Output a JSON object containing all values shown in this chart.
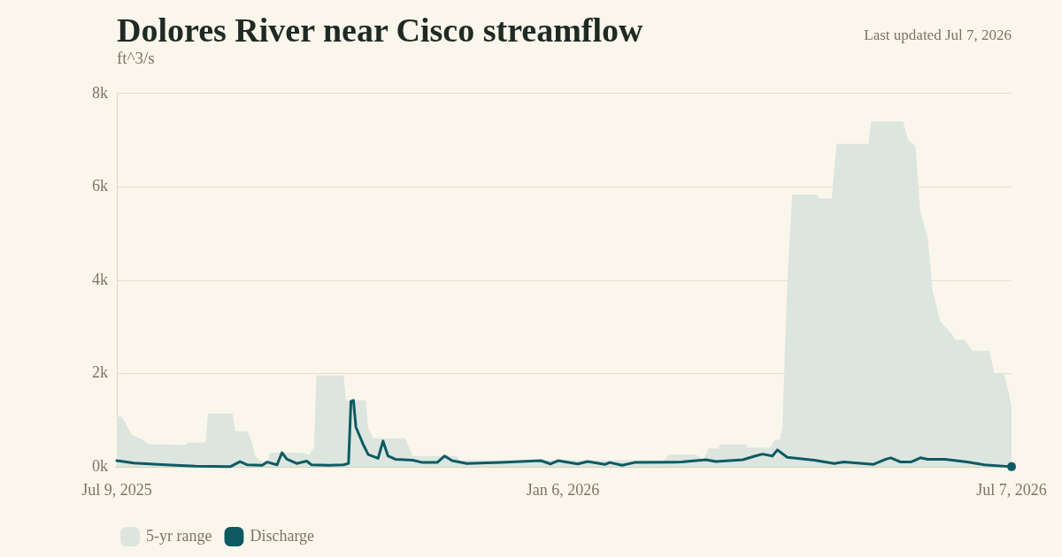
{
  "chart_data": {
    "type": "area",
    "title": "Dolores River near Cisco streamflow",
    "ylabel": "ft^3/s",
    "annotations": [
      "Last updated Jul 7, 2026"
    ],
    "xlim": [
      "2025-07-09",
      "2026-07-07"
    ],
    "xticks": [
      {
        "value": "2025-07-09",
        "label": "Jul 9, 2025"
      },
      {
        "value": "2026-01-06",
        "label": "Jan 6, 2026"
      },
      {
        "value": "2026-07-07",
        "label": "Jul 7, 2026"
      }
    ],
    "ylim": [
      0,
      8000
    ],
    "yticks": [
      {
        "value": 0,
        "label": "0k"
      },
      {
        "value": 2000,
        "label": "2k"
      },
      {
        "value": 4000,
        "label": "4k"
      },
      {
        "value": 6000,
        "label": "6k"
      },
      {
        "value": 8000,
        "label": "8k"
      }
    ],
    "grid": "y",
    "legend": "bottom left",
    "series": [
      {
        "name": "5-yr range",
        "type": "area",
        "color": "#dce6df",
        "x": [
          "2025-07-09",
          "2025-07-11",
          "2025-07-15",
          "2025-07-19",
          "2025-07-22",
          "2025-07-30",
          "2025-07-31",
          "2025-08-06",
          "2025-08-07",
          "2025-08-14",
          "2025-08-15",
          "2025-08-25",
          "2025-08-26",
          "2025-08-31",
          "2025-09-02",
          "2025-09-03",
          "2025-09-05",
          "2025-09-08",
          "2025-09-09",
          "2025-09-22",
          "2025-09-25",
          "2025-09-27",
          "2025-09-28",
          "2025-10-09",
          "2025-10-10",
          "2025-10-18",
          "2025-10-19",
          "2025-10-21",
          "2025-11-03",
          "2025-11-06",
          "2025-11-24",
          "2025-11-25",
          "2026-02-16",
          "2026-02-18",
          "2026-03-01",
          "2026-03-04",
          "2026-03-06",
          "2026-03-10",
          "2026-03-11",
          "2026-03-21",
          "2026-03-22",
          "2026-03-31",
          "2026-04-02",
          "2026-04-04",
          "2026-04-05",
          "2026-04-07",
          "2026-04-09",
          "2026-04-19",
          "2026-04-20",
          "2026-04-25",
          "2026-04-27",
          "2026-05-10",
          "2026-05-11",
          "2026-05-24",
          "2026-05-26",
          "2026-05-29",
          "2026-05-31",
          "2026-06-03",
          "2026-06-05",
          "2026-06-08",
          "2026-06-13",
          "2026-06-14",
          "2026-06-18",
          "2026-06-21",
          "2026-06-28",
          "2026-06-30",
          "2026-07-04",
          "2026-07-06",
          "2026-07-07"
        ],
        "values": [
          1080,
          1080,
          700,
          600,
          490,
          490,
          480,
          480,
          530,
          530,
          1150,
          1150,
          770,
          770,
          510,
          250,
          150,
          90,
          310,
          310,
          270,
          420,
          1960,
          1960,
          1430,
          1430,
          840,
          620,
          620,
          240,
          240,
          150,
          150,
          270,
          270,
          150,
          400,
          400,
          490,
          490,
          420,
          420,
          590,
          590,
          840,
          3950,
          5840,
          5840,
          5750,
          5750,
          6920,
          6920,
          7400,
          7400,
          7010,
          6880,
          5460,
          4910,
          3770,
          3130,
          2840,
          2730,
          2730,
          2490,
          2490,
          2010,
          1990,
          1570,
          1250
        ]
      },
      {
        "name": "Discharge",
        "type": "line",
        "color": "#0e5a63",
        "x": [
          "2025-07-09",
          "2025-07-16",
          "2025-07-29",
          "2025-08-10",
          "2025-08-24",
          "2025-08-28",
          "2025-08-31",
          "2025-09-06",
          "2025-09-08",
          "2025-09-12",
          "2025-09-14",
          "2025-09-16",
          "2025-09-20",
          "2025-09-24",
          "2025-09-26",
          "2025-10-03",
          "2025-10-09",
          "2025-10-11",
          "2025-10-12",
          "2025-10-13",
          "2025-10-14",
          "2025-10-17",
          "2025-10-19",
          "2025-10-23",
          "2025-10-25",
          "2025-10-27",
          "2025-10-30",
          "2025-11-06",
          "2025-11-10",
          "2025-11-16",
          "2025-11-19",
          "2025-11-22",
          "2025-11-28",
          "2025-12-12",
          "2025-12-28",
          "2026-01-01",
          "2026-01-04",
          "2026-01-12",
          "2026-01-16",
          "2026-01-23",
          "2026-01-25",
          "2026-01-30",
          "2026-02-04",
          "2026-02-23",
          "2026-03-05",
          "2026-03-09",
          "2026-03-20",
          "2026-03-25",
          "2026-03-28",
          "2026-04-01",
          "2026-04-03",
          "2026-04-07",
          "2026-04-18",
          "2026-04-26",
          "2026-04-30",
          "2026-05-12",
          "2026-05-17",
          "2026-05-19",
          "2026-05-23",
          "2026-05-27",
          "2026-05-29",
          "2026-05-31",
          "2026-06-03",
          "2026-06-10",
          "2026-06-13",
          "2026-06-19",
          "2026-06-26",
          "2026-07-07"
        ],
        "values": [
          140,
          90,
          50,
          20,
          10,
          120,
          50,
          40,
          110,
          50,
          310,
          170,
          80,
          130,
          50,
          40,
          50,
          80,
          1410,
          1430,
          860,
          480,
          270,
          190,
          560,
          240,
          170,
          150,
          100,
          100,
          240,
          140,
          80,
          100,
          140,
          70,
          140,
          70,
          120,
          60,
          100,
          40,
          100,
          110,
          160,
          120,
          160,
          240,
          280,
          240,
          370,
          210,
          150,
          80,
          110,
          60,
          170,
          200,
          110,
          110,
          150,
          200,
          170,
          170,
          150,
          110,
          50,
          10
        ]
      }
    ]
  }
}
